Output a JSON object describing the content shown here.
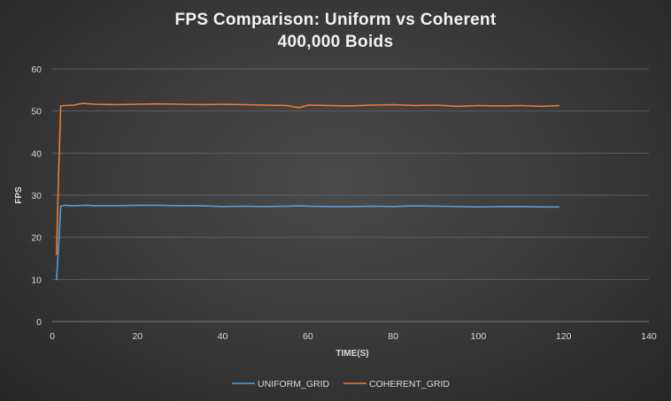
{
  "chart_data": {
    "type": "line",
    "title": "FPS Comparison: Uniform vs Coherent",
    "subtitle": "400,000 Boids",
    "xlabel": "TIME(S)",
    "ylabel": "FPS",
    "xlim": [
      0,
      140
    ],
    "ylim": [
      0,
      60
    ],
    "xticks": [
      0,
      20,
      40,
      60,
      80,
      100,
      120,
      140
    ],
    "yticks": [
      0,
      10,
      20,
      30,
      40,
      50,
      60
    ],
    "grid": true,
    "legend": "bottom",
    "series": [
      {
        "name": "UNIFORM_GRID",
        "color": "#5b9bd5",
        "x": [
          1,
          1.5,
          2,
          3,
          5,
          8,
          10,
          15,
          20,
          25,
          30,
          35,
          40,
          45,
          50,
          55,
          58,
          60,
          65,
          70,
          75,
          80,
          85,
          90,
          95,
          100,
          105,
          110,
          115,
          119
        ],
        "y": [
          9.8,
          18,
          27.4,
          27.6,
          27.5,
          27.6,
          27.5,
          27.5,
          27.6,
          27.6,
          27.5,
          27.5,
          27.3,
          27.4,
          27.3,
          27.4,
          27.5,
          27.4,
          27.3,
          27.3,
          27.4,
          27.3,
          27.5,
          27.4,
          27.3,
          27.2,
          27.3,
          27.3,
          27.2,
          27.2
        ]
      },
      {
        "name": "COHERENT_GRID",
        "color": "#ed7d31",
        "x": [
          1,
          1.5,
          2,
          3,
          5,
          7,
          10,
          15,
          20,
          25,
          30,
          35,
          40,
          45,
          50,
          55,
          58,
          60,
          65,
          70,
          75,
          80,
          85,
          90,
          95,
          100,
          105,
          110,
          115,
          119
        ],
        "y": [
          15.8,
          35,
          51.2,
          51.3,
          51.4,
          51.8,
          51.6,
          51.5,
          51.6,
          51.7,
          51.6,
          51.5,
          51.6,
          51.5,
          51.4,
          51.3,
          50.8,
          51.4,
          51.3,
          51.2,
          51.4,
          51.5,
          51.3,
          51.4,
          51.1,
          51.3,
          51.2,
          51.3,
          51.1,
          51.3
        ]
      }
    ]
  }
}
